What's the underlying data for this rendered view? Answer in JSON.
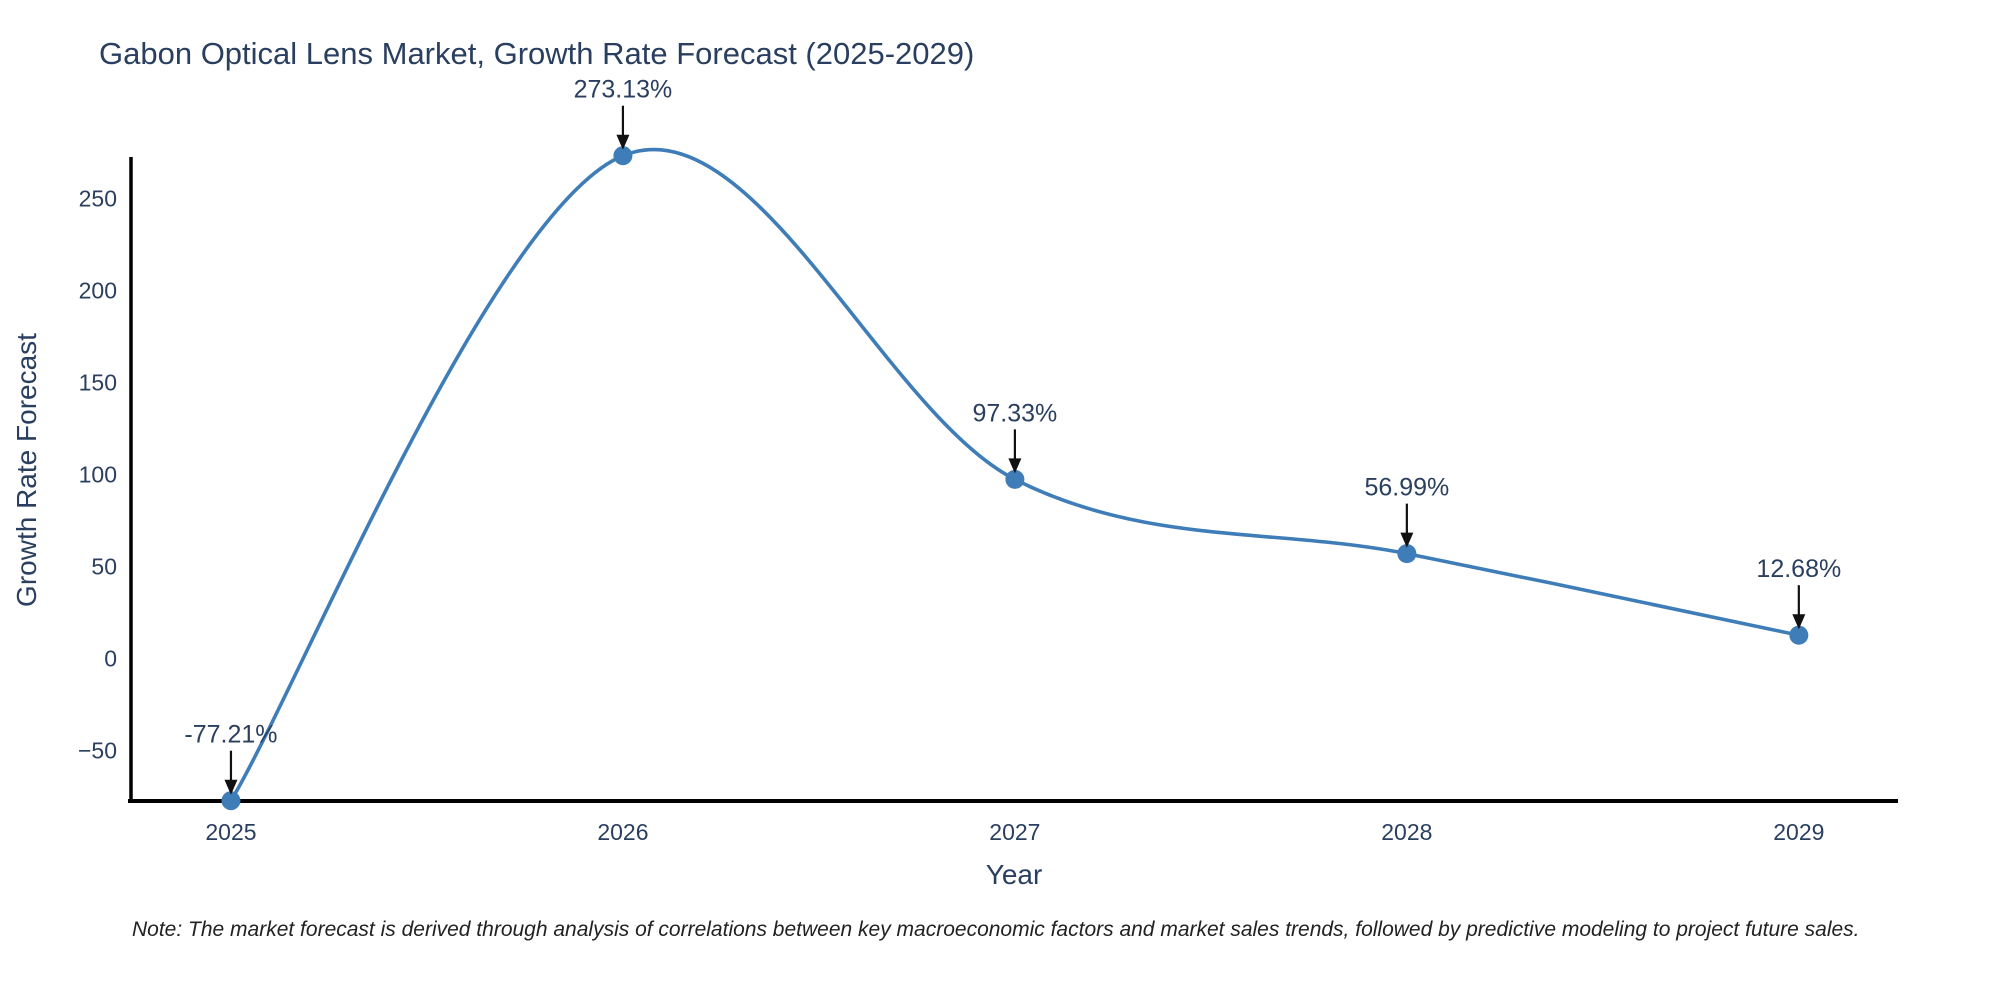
{
  "chart_data": {
    "type": "line",
    "title": "Gabon Optical Lens Market, Growth Rate Forecast (2025-2029)",
    "xlabel": "Year",
    "ylabel": "Growth Rate Forecast",
    "note": "Note: The market forecast is derived through analysis of correlations between key macroeconomic factors and market sales trends, followed by predictive modeling to project future sales.",
    "x": [
      2025,
      2026,
      2027,
      2028,
      2029
    ],
    "values": [
      -77.21,
      273.13,
      97.33,
      56.99,
      12.68
    ],
    "point_labels": [
      "-77.21%",
      "273.13%",
      "97.33%",
      "56.99%",
      "12.68%"
    ],
    "xticks": [
      "2025",
      "2026",
      "2027",
      "2028",
      "2029"
    ],
    "yticks": [
      -50,
      0,
      50,
      100,
      150,
      200,
      250
    ],
    "xlim": [
      2024.745,
      2029.253
    ],
    "ylim": [
      -77.21,
      273.3
    ],
    "line_shape": "spline",
    "grid": false,
    "legend": false,
    "annotations_arrows": true,
    "colors": {
      "line": "#3e7db8",
      "text": "#2a3f5f",
      "axis": "#000000",
      "arrow": "#111111",
      "note": "#222222",
      "background": "#ffffff"
    }
  }
}
